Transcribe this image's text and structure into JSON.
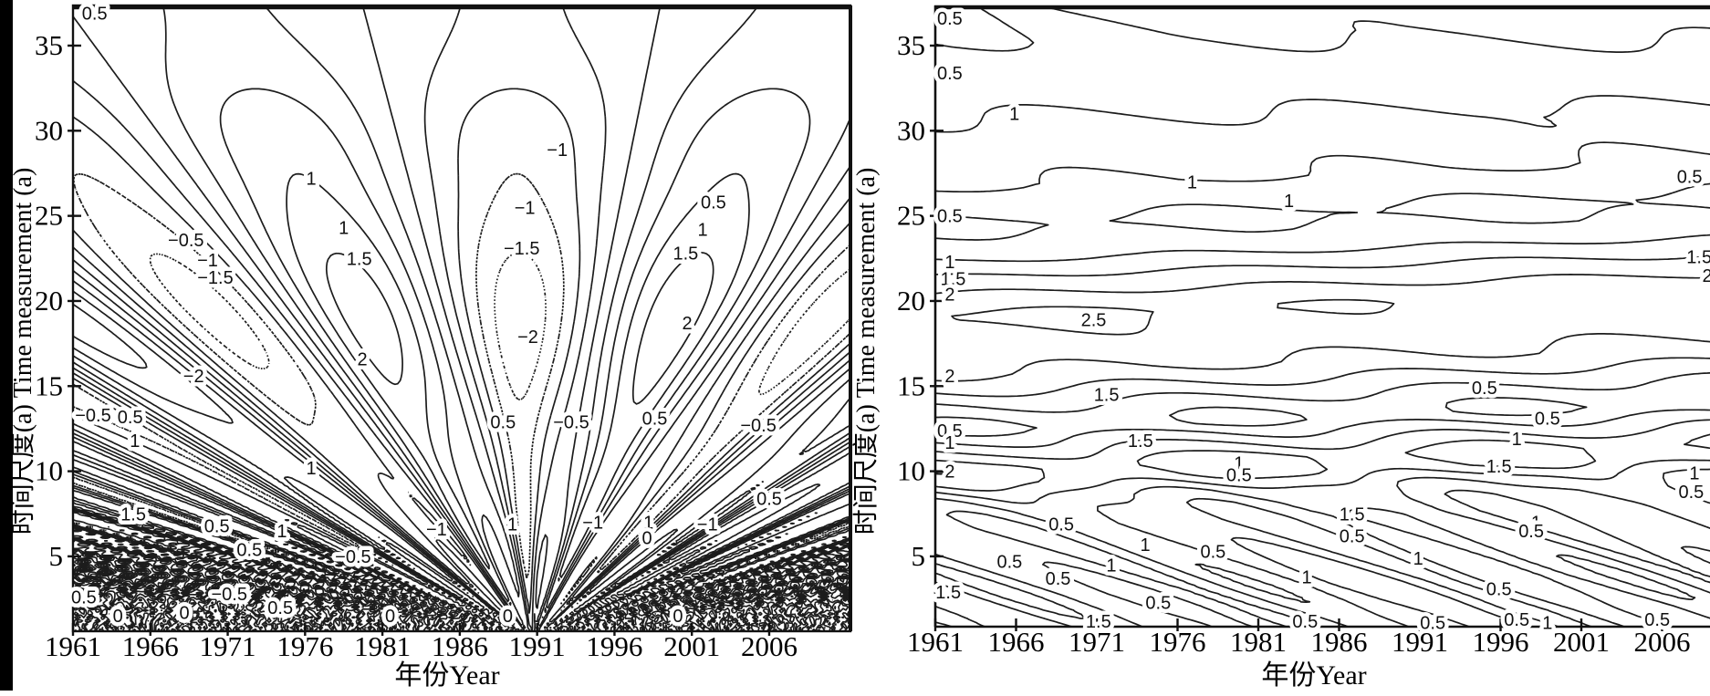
{
  "figure": {
    "background": "#ffffff",
    "ink_color": "#1c1c1c",
    "left_edge_bar_color": "#000000"
  },
  "chart_data": [
    {
      "type": "contour",
      "panel": "left",
      "xlabel": "年份Year",
      "ylabel": "时间尺度(a) Time measurement (a)",
      "x_ticks": [
        1961,
        1966,
        1971,
        1976,
        1981,
        1986,
        1991,
        1996,
        2001,
        2006
      ],
      "y_ticks": [
        5,
        10,
        15,
        20,
        25,
        30,
        35
      ],
      "x_range": [
        1961,
        2011.3
      ],
      "y_range": [
        0.6,
        37.36
      ],
      "levels": [
        -2.5,
        -2,
        -1.5,
        -1,
        -0.5,
        0,
        0.5,
        1,
        1.5,
        2,
        2.5
      ],
      "line_style": {
        "negative": "dashed",
        "zero_and_positive": "solid"
      },
      "grid": false,
      "legend": null,
      "field_model": {
        "kind": "oscillatory",
        "period_coeff": 1.03,
        "anchor_year": 1980.2,
        "anchor_scale": 19,
        "drift_per_scale": 0.55,
        "amplitude": {
          "base": 0.55,
          "gaussians": [
            [
              1.75,
              19,
              8.5
            ],
            [
              0.45,
              30,
              4
            ],
            [
              0.5,
              7,
              4
            ]
          ]
        },
        "harmonic": {
          "multiplier": 2.7,
          "phase": 1.7,
          "gaussians": [
            [
              0.65,
              4.5,
              4
            ],
            [
              0.25,
              11,
              6
            ]
          ]
        }
      },
      "contour_labels": [
        [
          "0.5",
          1962.4,
          36.9
        ],
        [
          "−1",
          1992.3,
          28.9
        ],
        [
          "1",
          1976.4,
          27.2
        ],
        [
          "−0.5",
          1968.3,
          23.6
        ],
        [
          "−1",
          1969.7,
          22.4
        ],
        [
          "−1.5",
          1970.2,
          21.4
        ],
        [
          "−1",
          1990.2,
          25.5
        ],
        [
          "−1.5",
          1990.0,
          23.1
        ],
        [
          "−2",
          1990.4,
          17.9
        ],
        [
          "1",
          1978.5,
          24.3
        ],
        [
          "1.5",
          1979.5,
          22.5
        ],
        [
          "2",
          1979.7,
          16.6
        ],
        [
          "0.5",
          2002.4,
          25.8
        ],
        [
          "1",
          2001.7,
          24.2
        ],
        [
          "1.5",
          2000.6,
          22.8
        ],
        [
          "2",
          2000.7,
          18.7
        ],
        [
          "−2",
          1968.8,
          15.6
        ],
        [
          "−0.5",
          1962.3,
          13.3
        ],
        [
          "0.5",
          1964.7,
          13.2
        ],
        [
          "1",
          1965.0,
          11.8
        ],
        [
          "1.5",
          1964.9,
          7.5
        ],
        [
          "0.5",
          1970.3,
          6.8
        ],
        [
          "1",
          1974.5,
          6.5
        ],
        [
          "1",
          1976.4,
          10.2
        ],
        [
          "0.5",
          1988.8,
          12.9
        ],
        [
          "−0.5",
          1993.2,
          12.9
        ],
        [
          "0.5",
          1998.6,
          13.1
        ],
        [
          "−0.5",
          2005.3,
          12.7
        ],
        [
          "0.5",
          2006.0,
          8.4
        ],
        [
          "−1",
          1984.5,
          6.6
        ],
        [
          "1",
          1989.4,
          6.9
        ],
        [
          "−1",
          1994.6,
          7.0
        ],
        [
          "1",
          1998.2,
          7.0
        ],
        [
          "−1",
          2002.0,
          6.9
        ],
        [
          "0",
          1998.1,
          6.1
        ],
        [
          "0.5",
          1961.7,
          2.6
        ],
        [
          "−0.5",
          1971.1,
          2.8
        ],
        [
          "0.5",
          1972.4,
          5.4
        ],
        [
          "−0.5",
          1979.1,
          5.0
        ],
        [
          "0.5",
          1974.4,
          2.0
        ],
        [
          "0",
          1963.9,
          1.5
        ],
        [
          "0",
          1968.2,
          1.7
        ],
        [
          "0",
          1981.5,
          1.5
        ],
        [
          "0",
          1989.1,
          1.5
        ],
        [
          "0",
          2000.1,
          1.5
        ]
      ]
    },
    {
      "type": "contour",
      "panel": "right",
      "xlabel": "年份Year",
      "ylabel": "时间尺度(a) Time measurement (a)",
      "x_ticks": [
        1961,
        1966,
        1971,
        1976,
        1981,
        1986,
        1991,
        1996,
        2001,
        2006
      ],
      "y_ticks": [
        5,
        10,
        15,
        20,
        25,
        30,
        35
      ],
      "x_range": [
        1961,
        2009.0
      ],
      "y_range": [
        0.87,
        37.36
      ],
      "levels": [
        0.5,
        1,
        1.5,
        2,
        2.5
      ],
      "line_style": {
        "all": "solid"
      },
      "grid": false,
      "legend": null,
      "field_model": {
        "kind": "banded",
        "shift_per_year": 0.035,
        "profile": [
          [
            0.5,
            0.9
          ],
          [
            1.5,
            1.02
          ],
          [
            2.5,
            1.06
          ],
          [
            3.5,
            1.0
          ],
          [
            4.5,
            0.9
          ],
          [
            5.5,
            0.8
          ],
          [
            6.5,
            0.73
          ],
          [
            7.5,
            0.85
          ],
          [
            8.3,
            1.2
          ],
          [
            9.2,
            1.95
          ],
          [
            10,
            2.15
          ],
          [
            10.8,
            1.6
          ],
          [
            11.7,
            1.0
          ],
          [
            12.3,
            0.52
          ],
          [
            12.8,
            0.58
          ],
          [
            13.7,
            1.0
          ],
          [
            14.6,
            1.5
          ],
          [
            15.6,
            2.0
          ],
          [
            17,
            2.35
          ],
          [
            19,
            2.62
          ],
          [
            20.4,
            2.0
          ],
          [
            21.4,
            1.5
          ],
          [
            22.3,
            1.0
          ],
          [
            23.3,
            0.62
          ],
          [
            24.3,
            0.44
          ],
          [
            25.3,
            0.62
          ],
          [
            26.6,
            1.0
          ],
          [
            28,
            1.12
          ],
          [
            29.5,
            1.12
          ],
          [
            31,
            0.97
          ],
          [
            32,
            0.85
          ],
          [
            33.5,
            0.7
          ],
          [
            35,
            0.55
          ],
          [
            36.5,
            0.48
          ],
          [
            38,
            0.42
          ]
        ],
        "x_mods": [
          [
            -0.005,
            19,
            4,
            "shifted"
          ],
          [
            -0.004,
            36,
            5,
            "raw"
          ]
        ],
        "waves": [
          {
            "period": 19,
            "phase_per_scale": 1.1,
            "phase0": 0,
            "amp_base": 0.08,
            "amp_gauss": [
              0.3,
              8,
              7
            ]
          },
          {
            "period": 8.3,
            "phase_per_scale": 2.3,
            "phase0": 1.0,
            "amp_base": 0,
            "amp_gauss": [
              0.4,
              3,
              5
            ]
          }
        ]
      },
      "contour_labels": [
        [
          "0.5",
          1961.9,
          36.6
        ],
        [
          "0.5",
          1961.9,
          33.4
        ],
        [
          "1",
          1965.9,
          31.0
        ],
        [
          "1",
          1976.9,
          27.0
        ],
        [
          "1",
          1982.9,
          25.9
        ],
        [
          "0.5",
          1961.9,
          25.0
        ],
        [
          "1",
          1961.9,
          22.3
        ],
        [
          "1.5",
          1962.1,
          21.3
        ],
        [
          "2",
          1961.9,
          20.4
        ],
        [
          "2.5",
          1970.8,
          18.9
        ],
        [
          "2",
          1961.9,
          15.6
        ],
        [
          "1.5",
          1971.6,
          14.5
        ],
        [
          "0.5",
          1961.9,
          12.4
        ],
        [
          "1",
          1961.9,
          11.7
        ],
        [
          "1.5",
          1973.7,
          11.8
        ],
        [
          "2",
          1961.9,
          10.0
        ],
        [
          "1",
          1979.8,
          10.5
        ],
        [
          "0.5",
          1979.8,
          9.8
        ],
        [
          "0.5",
          1968.8,
          6.9
        ],
        [
          "1",
          1974.0,
          5.7
        ],
        [
          "0.5",
          1978.2,
          5.3
        ],
        [
          "0.5",
          1965.6,
          4.7
        ],
        [
          "1",
          1971.9,
          4.5
        ],
        [
          "0.5",
          1968.6,
          3.7
        ],
        [
          "1.5",
          1961.8,
          2.9
        ],
        [
          "0.5",
          1974.8,
          2.3
        ],
        [
          "1.5",
          1971.1,
          1.2
        ],
        [
          "0.5",
          1995.0,
          14.9
        ],
        [
          "0.5",
          1998.9,
          13.1
        ],
        [
          "1",
          1997.0,
          11.9
        ],
        [
          "1.5",
          1995.9,
          10.3
        ],
        [
          "1.5",
          1986.8,
          7.5
        ],
        [
          "0.5",
          1986.8,
          6.2
        ],
        [
          "1",
          1998.2,
          7.0
        ],
        [
          "0.5",
          1997.9,
          6.5
        ],
        [
          "1",
          1990.9,
          4.9
        ],
        [
          "1",
          1984.0,
          3.8
        ],
        [
          "0.5",
          1995.9,
          3.1
        ],
        [
          "0.5",
          1983.9,
          1.2
        ],
        [
          "0.5",
          1991.8,
          1.1
        ],
        [
          "0.5",
          1997.0,
          1.3
        ],
        [
          "1",
          1998.9,
          1.1
        ],
        [
          "0.5",
          2005.7,
          1.3
        ],
        [
          "1",
          2008.0,
          9.9
        ],
        [
          "0.5",
          2007.8,
          8.8
        ],
        [
          "0.5",
          2007.7,
          27.3
        ],
        [
          "1.5",
          2008.3,
          22.6
        ],
        [
          "2",
          2008.8,
          21.5
        ]
      ]
    }
  ]
}
